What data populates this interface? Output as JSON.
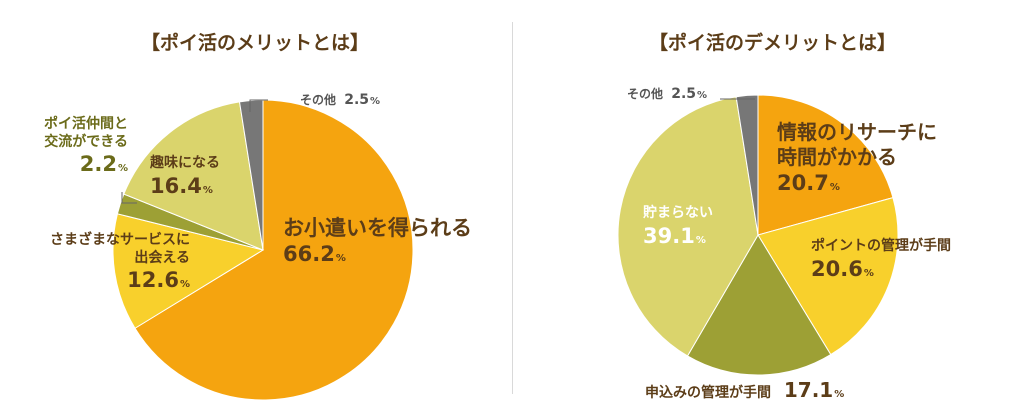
{
  "chart_data": [
    {
      "type": "pie",
      "title": "【ポイ活のメリットとは】",
      "slices": [
        {
          "label": "お小遣いを得られる",
          "value": 66.2,
          "color": "#f5a40f"
        },
        {
          "label": "さまざまなサービスに出会える",
          "value": 12.6,
          "color": "#f8d02c"
        },
        {
          "label": "ポイ活仲間と交流ができる",
          "value": 2.2,
          "color": "#9da035"
        },
        {
          "label": "趣味になる",
          "value": 16.4,
          "color": "#dad46c"
        },
        {
          "label": "その他",
          "value": 2.5,
          "color": "#777777"
        }
      ]
    },
    {
      "type": "pie",
      "title": "【ポイ活のデメリットとは】",
      "slices": [
        {
          "label": "情報のリサーチに時間がかかる",
          "value": 20.7,
          "color": "#f5a40f"
        },
        {
          "label": "ポイントの管理が手間",
          "value": 20.6,
          "color": "#f8d02c"
        },
        {
          "label": "申込みの管理が手間",
          "value": 17.1,
          "color": "#9da035"
        },
        {
          "label": "貯まらない",
          "value": 39.1,
          "color": "#dad46c"
        },
        {
          "label": "その他",
          "value": 2.5,
          "color": "#777777"
        }
      ]
    }
  ],
  "labels": {
    "left": {
      "main_line1": "お小遣いを得られる",
      "main_pct": "66.2",
      "service_line1": "さまざまなサービスに",
      "service_line2": "出会える",
      "service_pct": "12.6",
      "friends_line1": "ポイ活仲間と",
      "friends_line2": "交流ができる",
      "friends_pct": "2.2",
      "hobby_line1": "趣味になる",
      "hobby_pct": "16.4",
      "other_label": "その他",
      "other_pct": "2.5"
    },
    "right": {
      "research_line1": "情報のリサーチに",
      "research_line2": "時間がかかる",
      "research_pct": "20.7",
      "points_line1": "ポイントの管理が手間",
      "points_pct": "20.6",
      "apply_line1": "申込みの管理が手間",
      "apply_pct": "17.1",
      "nosave_line1": "貯まらない",
      "nosave_pct": "39.1",
      "other_label": "その他",
      "other_pct": "2.5"
    },
    "percent_sign": "%"
  }
}
